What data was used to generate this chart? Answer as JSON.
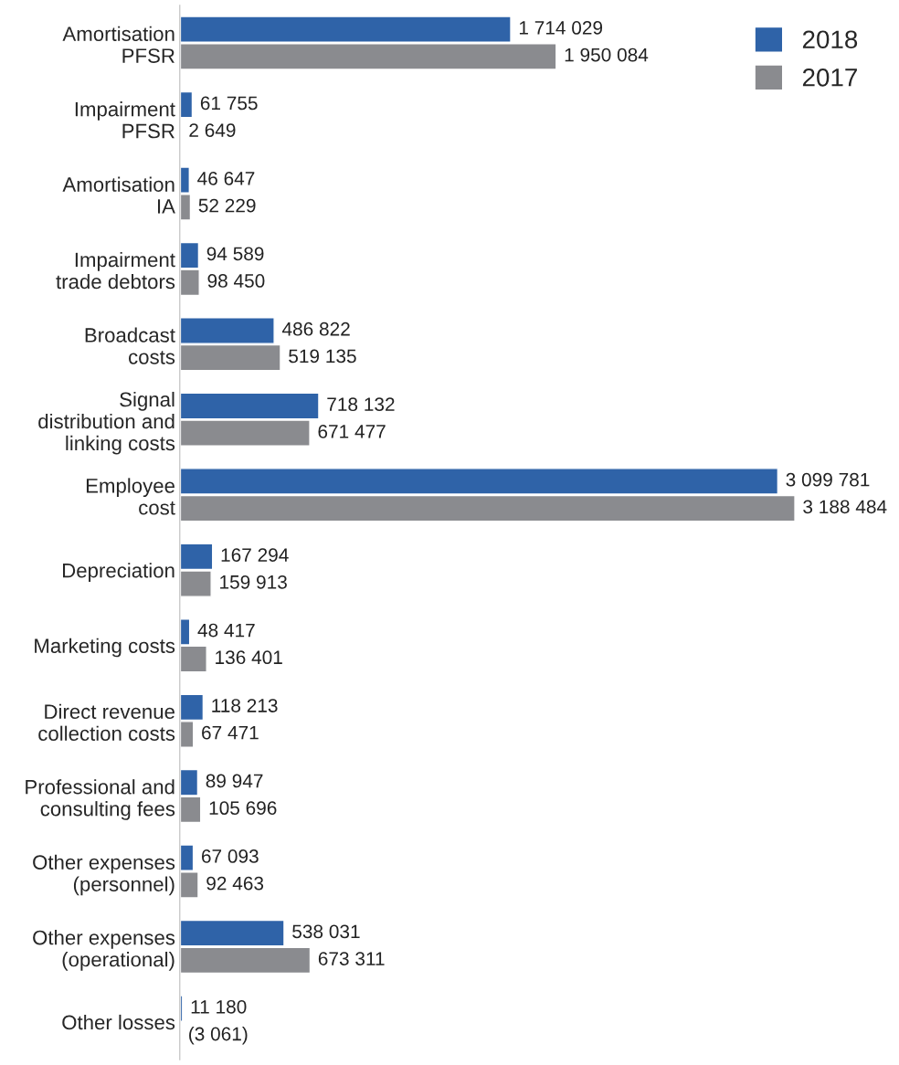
{
  "chart_data": {
    "type": "bar",
    "orientation": "horizontal",
    "categories": [
      "Amortisation\nPFSR",
      "Impairment\nPFSR",
      "Amortisation\nIA",
      "Impairment\ntrade debtors",
      "Broadcast\ncosts",
      "Signal\ndistribution and\nlinking costs",
      "Employee\ncost",
      "Depreciation",
      "Marketing costs",
      "Direct revenue\ncollection costs",
      "Professional and\nconsulting fees",
      "Other expenses\n(personnel)",
      "Other expenses\n(operational)",
      "Other losses"
    ],
    "series": [
      {
        "name": "2018",
        "color": "#2f63a8",
        "values": [
          1714029,
          61755,
          46647,
          94589,
          486822,
          718132,
          3099781,
          167294,
          48417,
          118213,
          89947,
          67093,
          538031,
          11180
        ],
        "value_labels": [
          "1 714 029",
          "61 755",
          "46 647",
          "94 589",
          "486 822",
          "718 132",
          "3 099 781",
          "167 294",
          "48 417",
          "118 213",
          "89 947",
          "67 093",
          "538 031",
          "11 180"
        ]
      },
      {
        "name": "2017",
        "color": "#8a8b8f",
        "values": [
          1950084,
          2649,
          52229,
          98450,
          519135,
          671477,
          3188484,
          159913,
          136401,
          67471,
          105696,
          92463,
          673311,
          -3061
        ],
        "value_labels": [
          "1 950 084",
          "2 649",
          "52 229",
          "98 450",
          "519 135",
          "671 477",
          "3 188 484",
          "159 913",
          "136 401",
          "67 471",
          "105 696",
          "92 463",
          "673 311",
          "(3 061)"
        ]
      }
    ],
    "tick_labels": "y",
    "legend": "top right",
    "grid": false
  }
}
